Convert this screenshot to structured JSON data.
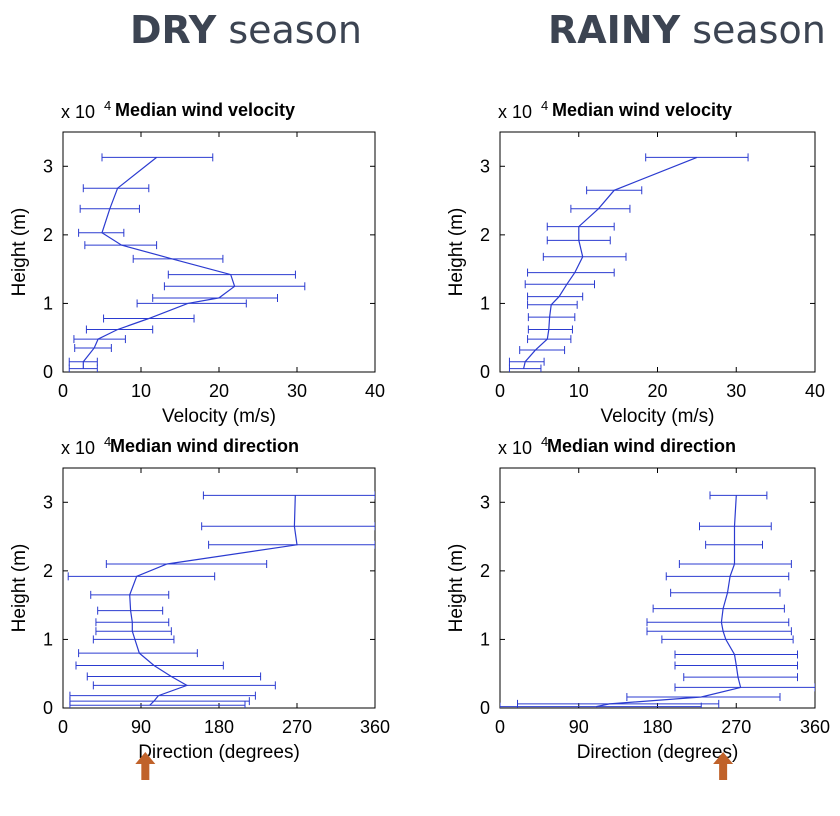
{
  "seasons": {
    "dry": {
      "strong": "DRY",
      "light": " season"
    },
    "rainy": {
      "strong": "RAINY",
      "light": " season"
    }
  },
  "colors": {
    "series": "#2b3bd0",
    "arrow": "#c0622a",
    "title": "#3c4452"
  },
  "chart_data": [
    {
      "id": "dry-velocity",
      "type": "line",
      "title": "Median wind velocity",
      "exp_label": "x 10",
      "exp_power": "4",
      "xlabel": "Velocity (m/s)",
      "ylabel": "Height (m)",
      "xlim": [
        0,
        40
      ],
      "ylim": [
        0,
        3.5
      ],
      "xticks": [
        0,
        10,
        20,
        30,
        40
      ],
      "xtick_labels": [
        "0",
        "10",
        "20",
        "30",
        "40"
      ],
      "yticks": [
        0,
        1,
        2,
        3
      ],
      "ytick_labels": [
        "0",
        "1",
        "2",
        "3"
      ],
      "points": [
        {
          "h": 0.05,
          "v": 2.6,
          "lo": 0.8,
          "hi": 4.4
        },
        {
          "h": 0.15,
          "v": 2.6,
          "lo": 0.8,
          "hi": 4.4
        },
        {
          "h": 0.35,
          "v": 4.0,
          "lo": 1.5,
          "hi": 6.2
        },
        {
          "h": 0.48,
          "v": 4.5,
          "lo": 1.4,
          "hi": 8.0
        },
        {
          "h": 0.62,
          "v": 7.0,
          "lo": 3.0,
          "hi": 11.5
        },
        {
          "h": 0.78,
          "v": 11.0,
          "lo": 5.2,
          "hi": 16.8
        },
        {
          "h": 1.0,
          "v": 16.0,
          "lo": 9.5,
          "hi": 23.5
        },
        {
          "h": 1.08,
          "v": 20.0,
          "lo": 11.5,
          "hi": 27.5
        },
        {
          "h": 1.25,
          "v": 22.0,
          "lo": 13.0,
          "hi": 31.0
        },
        {
          "h": 1.42,
          "v": 21.5,
          "lo": 13.5,
          "hi": 29.8
        },
        {
          "h": 1.65,
          "v": 14.0,
          "lo": 9.0,
          "hi": 20.5
        },
        {
          "h": 1.85,
          "v": 7.5,
          "lo": 2.8,
          "hi": 12.0
        },
        {
          "h": 2.03,
          "v": 5.0,
          "lo": 2.0,
          "hi": 7.8
        },
        {
          "h": 2.38,
          "v": 6.0,
          "lo": 2.2,
          "hi": 9.8
        },
        {
          "h": 2.68,
          "v": 7.0,
          "lo": 2.6,
          "hi": 11.0
        },
        {
          "h": 3.13,
          "v": 12.0,
          "lo": 5.0,
          "hi": 19.2
        }
      ]
    },
    {
      "id": "rainy-velocity",
      "type": "line",
      "title": "Median wind velocity",
      "exp_label": "x 10",
      "exp_power": "4",
      "xlabel": "Velocity (m/s)",
      "ylabel": "Height (m)",
      "xlim": [
        0,
        40
      ],
      "ylim": [
        0,
        3.5
      ],
      "xticks": [
        0,
        10,
        20,
        30,
        40
      ],
      "xtick_labels": [
        "0",
        "10",
        "20",
        "30",
        "40"
      ],
      "yticks": [
        0,
        1,
        2,
        3
      ],
      "ytick_labels": [
        "0",
        "1",
        "2",
        "3"
      ],
      "points": [
        {
          "h": 0.05,
          "v": 3.0,
          "lo": 1.2,
          "hi": 5.2
        },
        {
          "h": 0.15,
          "v": 3.2,
          "lo": 1.2,
          "hi": 5.6
        },
        {
          "h": 0.32,
          "v": 4.5,
          "lo": 2.5,
          "hi": 8.2
        },
        {
          "h": 0.48,
          "v": 6.0,
          "lo": 3.5,
          "hi": 9.0
        },
        {
          "h": 0.62,
          "v": 6.2,
          "lo": 3.6,
          "hi": 9.2
        },
        {
          "h": 0.8,
          "v": 6.3,
          "lo": 3.6,
          "hi": 9.5
        },
        {
          "h": 0.98,
          "v": 6.5,
          "lo": 3.5,
          "hi": 9.8
        },
        {
          "h": 1.1,
          "v": 7.5,
          "lo": 3.5,
          "hi": 10.5
        },
        {
          "h": 1.28,
          "v": 8.5,
          "lo": 3.2,
          "hi": 12.0
        },
        {
          "h": 1.45,
          "v": 9.5,
          "lo": 3.5,
          "hi": 14.5
        },
        {
          "h": 1.68,
          "v": 10.5,
          "lo": 5.5,
          "hi": 16.0
        },
        {
          "h": 1.92,
          "v": 10.0,
          "lo": 6.0,
          "hi": 14.0
        },
        {
          "h": 2.12,
          "v": 10.0,
          "lo": 6.0,
          "hi": 14.5
        },
        {
          "h": 2.38,
          "v": 12.5,
          "lo": 9.0,
          "hi": 16.5
        },
        {
          "h": 2.65,
          "v": 14.5,
          "lo": 11.0,
          "hi": 18.0
        },
        {
          "h": 3.13,
          "v": 25.0,
          "lo": 18.5,
          "hi": 31.5
        }
      ]
    },
    {
      "id": "dry-direction",
      "type": "line",
      "title": "Median wind direction",
      "exp_label": "x 10",
      "exp_power": "4",
      "xlabel": "Direction (degrees)",
      "ylabel": "Height (m)",
      "xlim": [
        0,
        360
      ],
      "ylim": [
        0,
        3.5
      ],
      "xticks": [
        0,
        90,
        180,
        270,
        360
      ],
      "xtick_labels": [
        "0",
        "90",
        "180",
        "270",
        "360"
      ],
      "yticks": [
        0,
        1,
        2,
        3
      ],
      "ytick_labels": [
        "0",
        "1",
        "2",
        "3"
      ],
      "arrow_at": 95,
      "points": [
        {
          "h": 0.04,
          "v": 100,
          "lo": 8,
          "hi": 210
        },
        {
          "h": 0.1,
          "v": 105,
          "lo": 8,
          "hi": 215
        },
        {
          "h": 0.18,
          "v": 110,
          "lo": 8,
          "hi": 222
        },
        {
          "h": 0.33,
          "v": 143,
          "lo": 35,
          "hi": 245
        },
        {
          "h": 0.46,
          "v": 125,
          "lo": 28,
          "hi": 228
        },
        {
          "h": 0.62,
          "v": 105,
          "lo": 15,
          "hi": 185
        },
        {
          "h": 0.8,
          "v": 88,
          "lo": 18,
          "hi": 155
        },
        {
          "h": 1.0,
          "v": 83,
          "lo": 35,
          "hi": 128
        },
        {
          "h": 1.12,
          "v": 80,
          "lo": 38,
          "hi": 125
        },
        {
          "h": 1.25,
          "v": 80,
          "lo": 38,
          "hi": 122
        },
        {
          "h": 1.42,
          "v": 78,
          "lo": 40,
          "hi": 115
        },
        {
          "h": 1.65,
          "v": 77,
          "lo": 32,
          "hi": 122
        },
        {
          "h": 1.92,
          "v": 85,
          "lo": 6,
          "hi": 175
        },
        {
          "h": 2.1,
          "v": 120,
          "lo": 50,
          "hi": 235
        },
        {
          "h": 2.38,
          "v": 270,
          "lo": 168,
          "hi": 360
        },
        {
          "h": 2.65,
          "v": 267,
          "lo": 160,
          "hi": 360
        },
        {
          "h": 3.1,
          "v": 268,
          "lo": 162,
          "hi": 360
        }
      ]
    },
    {
      "id": "rainy-direction",
      "type": "line",
      "title": "Median wind direction",
      "exp_label": "x 10",
      "exp_power": "4",
      "xlabel": "Direction (degrees)",
      "ylabel": "Height (m)",
      "xlim": [
        0,
        360
      ],
      "ylim": [
        0,
        3.5
      ],
      "xticks": [
        0,
        90,
        180,
        270,
        360
      ],
      "xtick_labels": [
        "0",
        "90",
        "180",
        "270",
        "360"
      ],
      "yticks": [
        0,
        1,
        2,
        3
      ],
      "ytick_labels": [
        "0",
        "1",
        "2",
        "3"
      ],
      "arrow_at": 255,
      "points": [
        {
          "h": 0.02,
          "v": 110,
          "lo": 0,
          "hi": 230
        },
        {
          "h": 0.06,
          "v": 125,
          "lo": 20,
          "hi": 250
        },
        {
          "h": 0.16,
          "v": 230,
          "lo": 145,
          "hi": 320
        },
        {
          "h": 0.3,
          "v": 275,
          "lo": 200,
          "hi": 360
        },
        {
          "h": 0.45,
          "v": 272,
          "lo": 210,
          "hi": 340
        },
        {
          "h": 0.62,
          "v": 270,
          "lo": 200,
          "hi": 340
        },
        {
          "h": 0.78,
          "v": 268,
          "lo": 200,
          "hi": 340
        },
        {
          "h": 1.0,
          "v": 258,
          "lo": 185,
          "hi": 335
        },
        {
          "h": 1.12,
          "v": 255,
          "lo": 168,
          "hi": 333
        },
        {
          "h": 1.25,
          "v": 253,
          "lo": 168,
          "hi": 330
        },
        {
          "h": 1.45,
          "v": 255,
          "lo": 175,
          "hi": 325
        },
        {
          "h": 1.68,
          "v": 260,
          "lo": 195,
          "hi": 320
        },
        {
          "h": 1.92,
          "v": 263,
          "lo": 190,
          "hi": 330
        },
        {
          "h": 2.1,
          "v": 268,
          "lo": 205,
          "hi": 333
        },
        {
          "h": 2.38,
          "v": 268,
          "lo": 235,
          "hi": 300
        },
        {
          "h": 2.65,
          "v": 268,
          "lo": 228,
          "hi": 310
        },
        {
          "h": 3.1,
          "v": 270,
          "lo": 240,
          "hi": 305
        }
      ]
    }
  ]
}
